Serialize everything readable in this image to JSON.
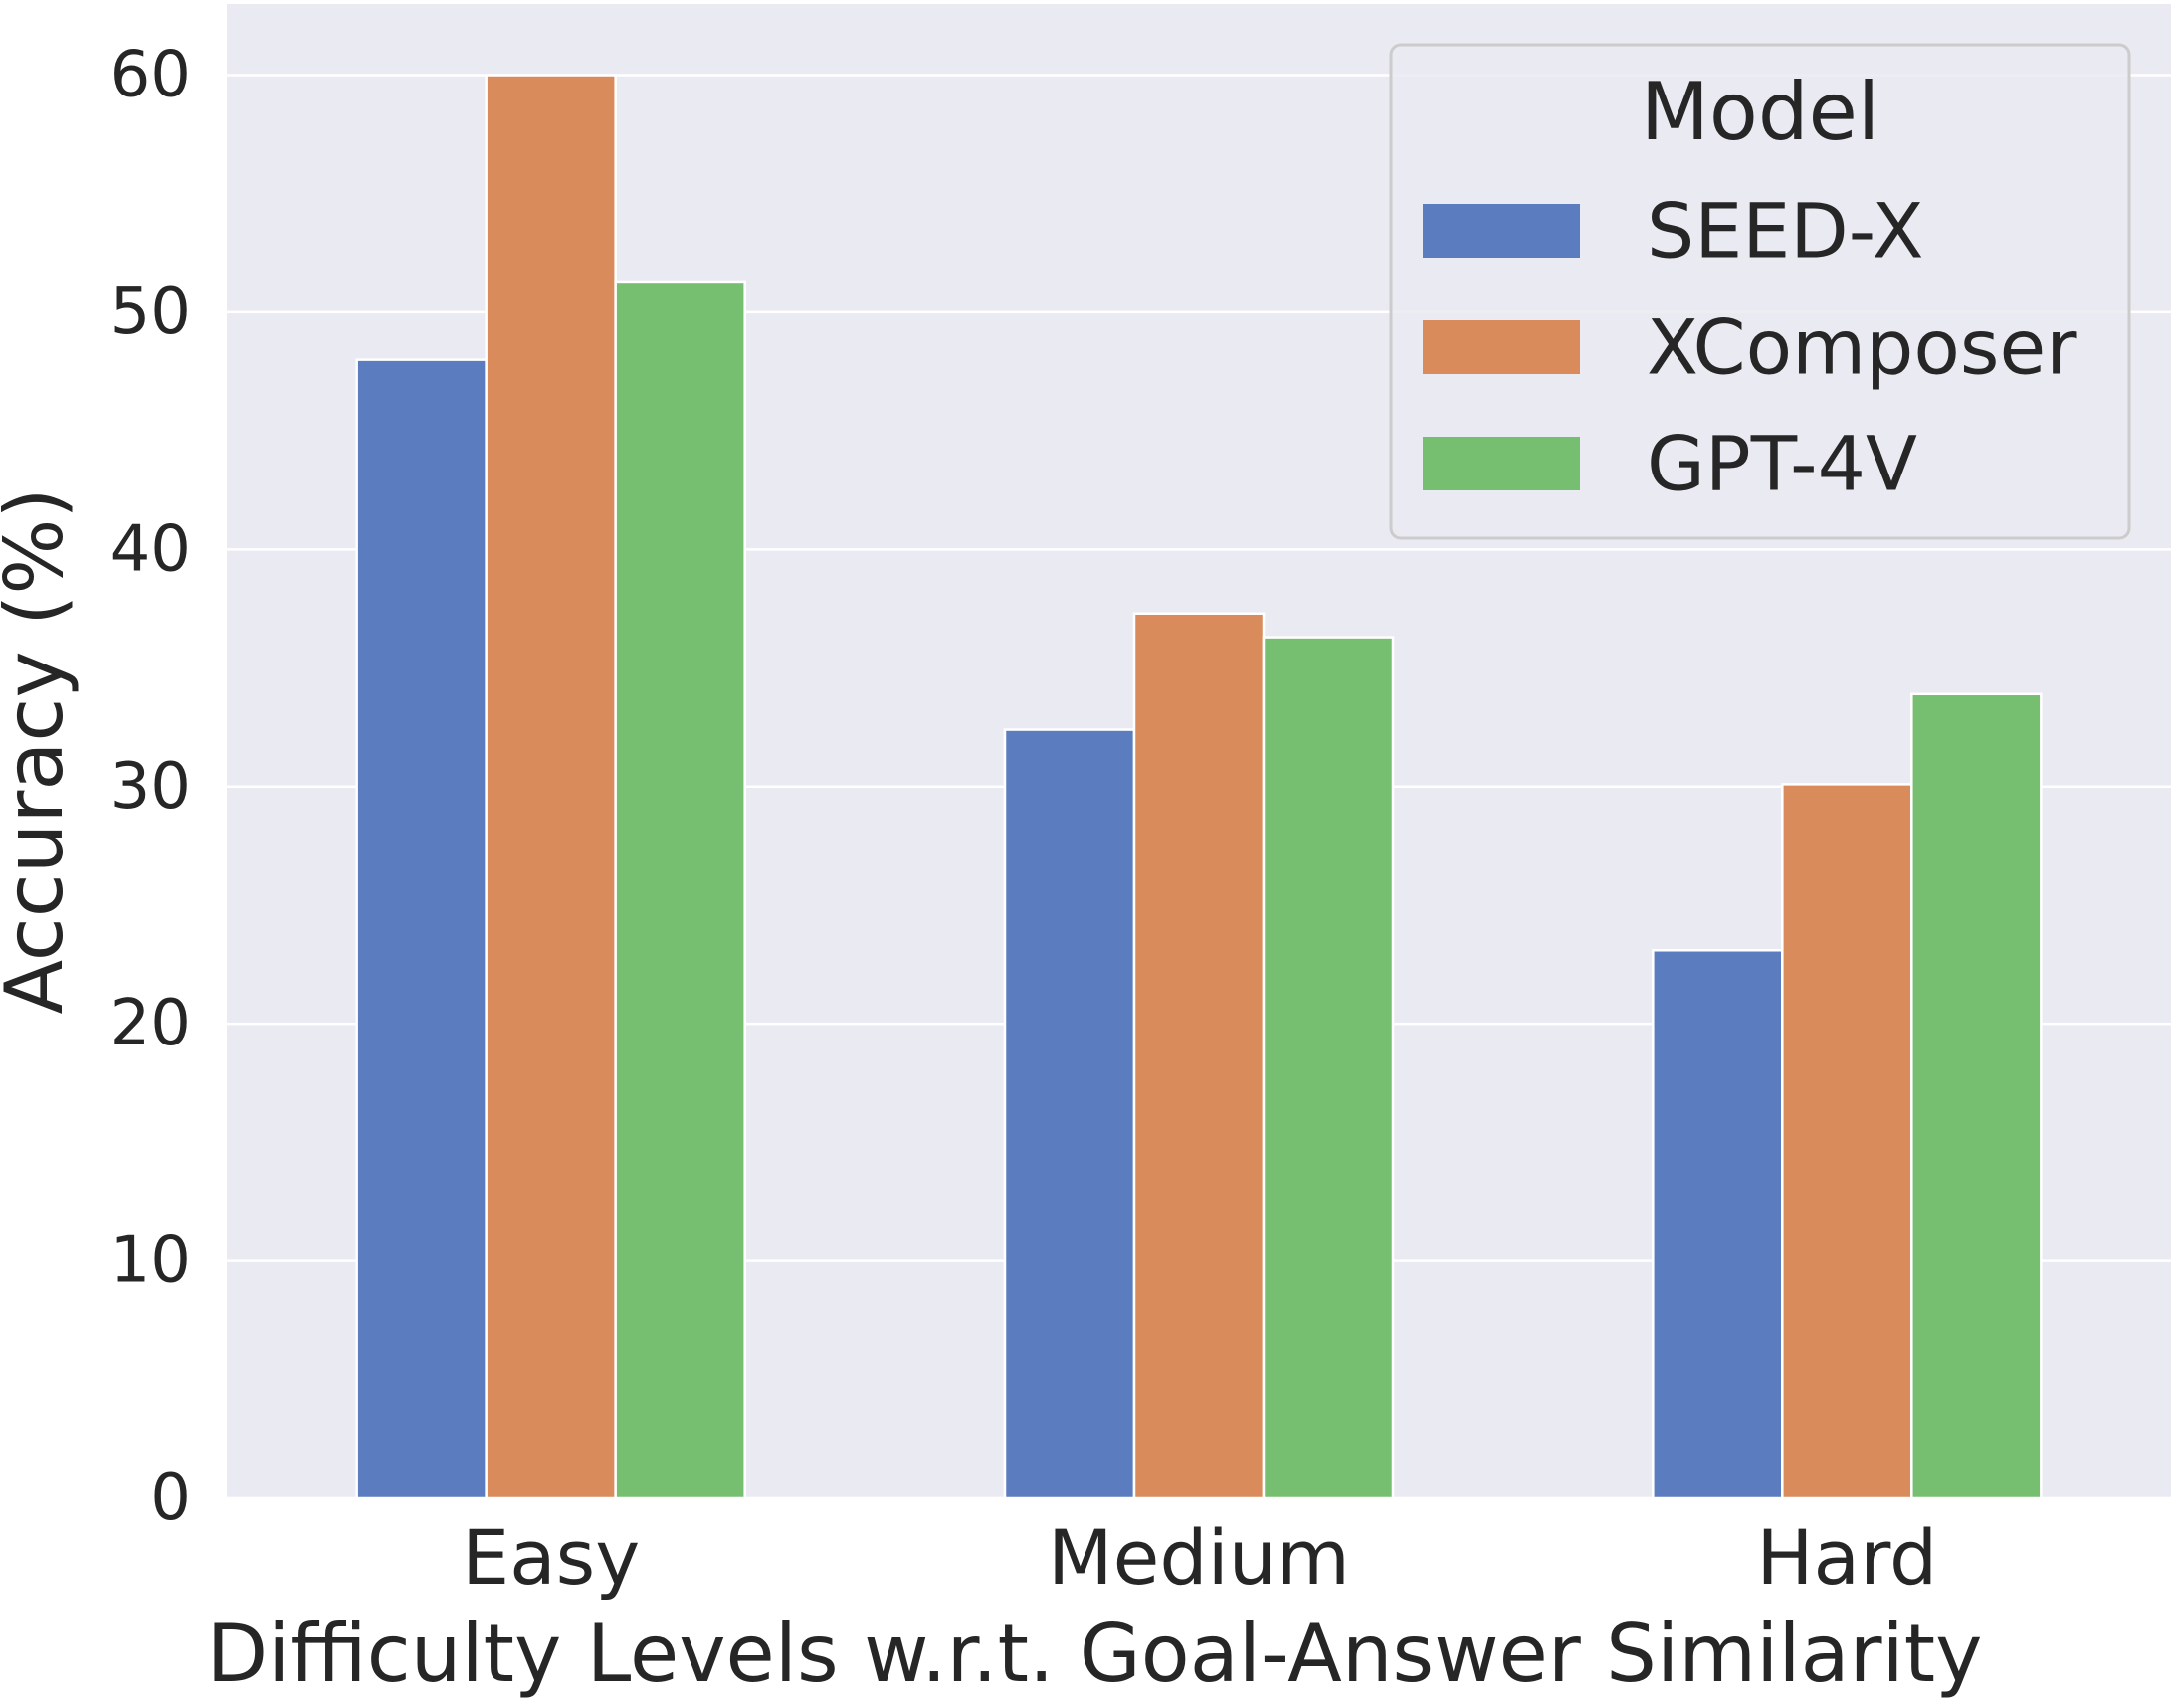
{
  "chart_data": {
    "type": "bar",
    "xlabel": "Difficulty Levels w.r.t. Goal-Answer Similarity",
    "ylabel": "Accuracy (%)",
    "categories": [
      "Easy",
      "Medium",
      "Hard"
    ],
    "ylim": [
      0,
      63
    ],
    "yticks": [
      0,
      10,
      20,
      30,
      40,
      50,
      60
    ],
    "grid": true,
    "legend": {
      "title": "Model",
      "position": "top-right"
    },
    "series": [
      {
        "name": "SEED-X",
        "color": "#5b7dbf",
        "values": [
          48.0,
          32.4,
          23.1
        ]
      },
      {
        "name": "XComposer",
        "color": "#d98b5c",
        "values": [
          60.0,
          37.3,
          30.1
        ]
      },
      {
        "name": "GPT-4V",
        "color": "#77bf70",
        "values": [
          51.3,
          36.3,
          33.9
        ]
      }
    ],
    "style": {
      "plot_background": "#eaeaf2",
      "grid_color": "#ffffff",
      "text_color": "#262626"
    }
  }
}
